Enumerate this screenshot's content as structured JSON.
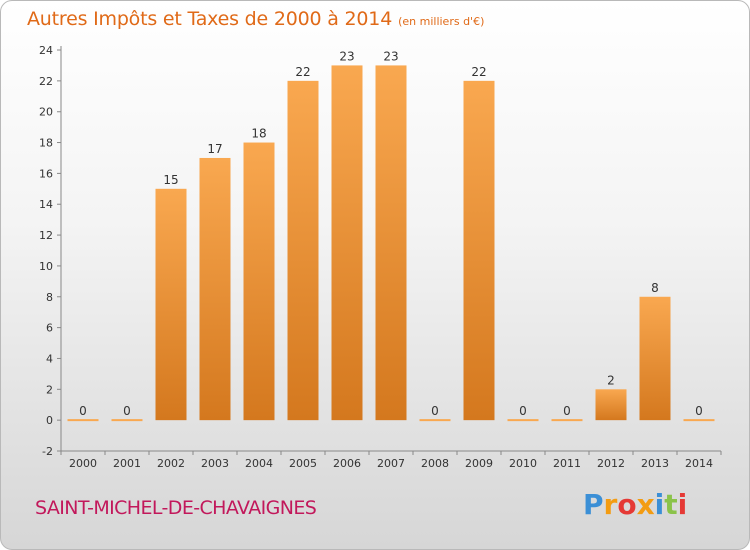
{
  "chart_data": {
    "type": "bar",
    "title": "Autres Impôts et Taxes de 2000 à 2014",
    "unit_label": "(en milliers d'€)",
    "categories": [
      "2000",
      "2001",
      "2002",
      "2003",
      "2004",
      "2005",
      "2006",
      "2007",
      "2008",
      "2009",
      "2010",
      "2011",
      "2012",
      "2013",
      "2014"
    ],
    "values": [
      0,
      0,
      15,
      17,
      18,
      22,
      23,
      23,
      0,
      22,
      0,
      0,
      2,
      8,
      0
    ],
    "ylim": [
      -2,
      24
    ],
    "yticks": [
      -2,
      0,
      2,
      4,
      6,
      8,
      10,
      12,
      14,
      16,
      18,
      20,
      22,
      24
    ],
    "grid": false,
    "legend": "none",
    "colors": {
      "bar_light": "#f9a850",
      "bar_dark": "#d4781e",
      "text": "#333333",
      "title": "#e06a18"
    }
  },
  "commune": "SAINT-MICHEL-DE-CHAVAIGNES",
  "logo": {
    "text": "Proxiti",
    "letter_colors": [
      "#3b8fd6",
      "#f39c12",
      "#e53935",
      "#f39c12",
      "#3b8fd6",
      "#8bc34a",
      "#e53935"
    ]
  }
}
